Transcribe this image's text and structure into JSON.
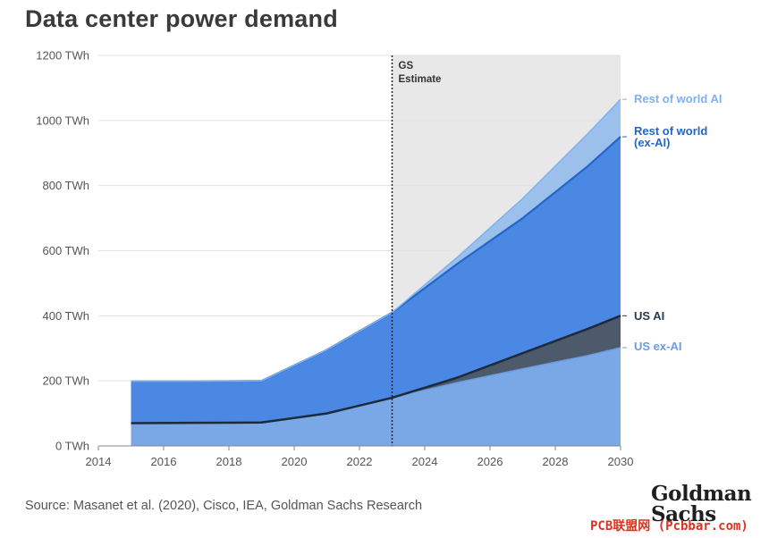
{
  "title": "Data center power demand",
  "source": "Source: Masanet et al. (2020), Cisco, IEA, Goldman Sachs Research",
  "logo": {
    "line1": "Goldman",
    "line2": "Sachs"
  },
  "watermark": "PCB联盟网 (Pcbbar.com)",
  "chart_data": {
    "type": "area",
    "stacked": true,
    "x_unit": "year",
    "y_unit": "TWh",
    "xlim": [
      2014,
      2030
    ],
    "ylim": [
      0,
      1200
    ],
    "x_ticks": [
      2014,
      2016,
      2018,
      2020,
      2022,
      2024,
      2026,
      2028,
      2030
    ],
    "x_tick_labels": [
      "2014",
      "2016",
      "2018",
      "2020",
      "2022",
      "2024",
      "2026",
      "2028",
      "2030"
    ],
    "y_ticks": [
      0,
      200,
      400,
      600,
      800,
      1000,
      1200
    ],
    "y_tick_labels": [
      "0 TWh",
      "200 TWh",
      "400 TWh",
      "600 TWh",
      "800 TWh",
      "1000 TWh",
      "1200 TWh"
    ],
    "estimate_start": 2023,
    "estimate_label_line1": "GS",
    "estimate_label_line2": "Estimate",
    "x": [
      2015,
      2017,
      2019,
      2021,
      2023,
      2025,
      2027,
      2029,
      2030
    ],
    "series": [
      {
        "name": "US ex-AI",
        "cumulative": [
          70,
          71,
          72,
          100,
          148,
          195,
          237,
          278,
          302
        ],
        "color": "#7aa7e6",
        "label_color": "#6b9de0"
      },
      {
        "name": "US AI",
        "cumulative": [
          70,
          71,
          72,
          100,
          148,
          210,
          285,
          360,
          400
        ],
        "color": "#4d5a6b",
        "label_color": "#2b3a4d"
      },
      {
        "name": "Rest of world (ex-AI)",
        "label_line1": "Rest of world",
        "label_line2": "(ex-AI)",
        "cumulative": [
          198,
          198,
          200,
          295,
          410,
          560,
          700,
          860,
          950
        ],
        "color": "#4a88e3",
        "label_color": "#2466c6"
      },
      {
        "name": "Rest of world AI",
        "cumulative": [
          198,
          198,
          200,
          295,
          410,
          580,
          760,
          960,
          1065
        ],
        "color": "#9cc0ec",
        "label_color": "#7fb1ee"
      }
    ]
  }
}
